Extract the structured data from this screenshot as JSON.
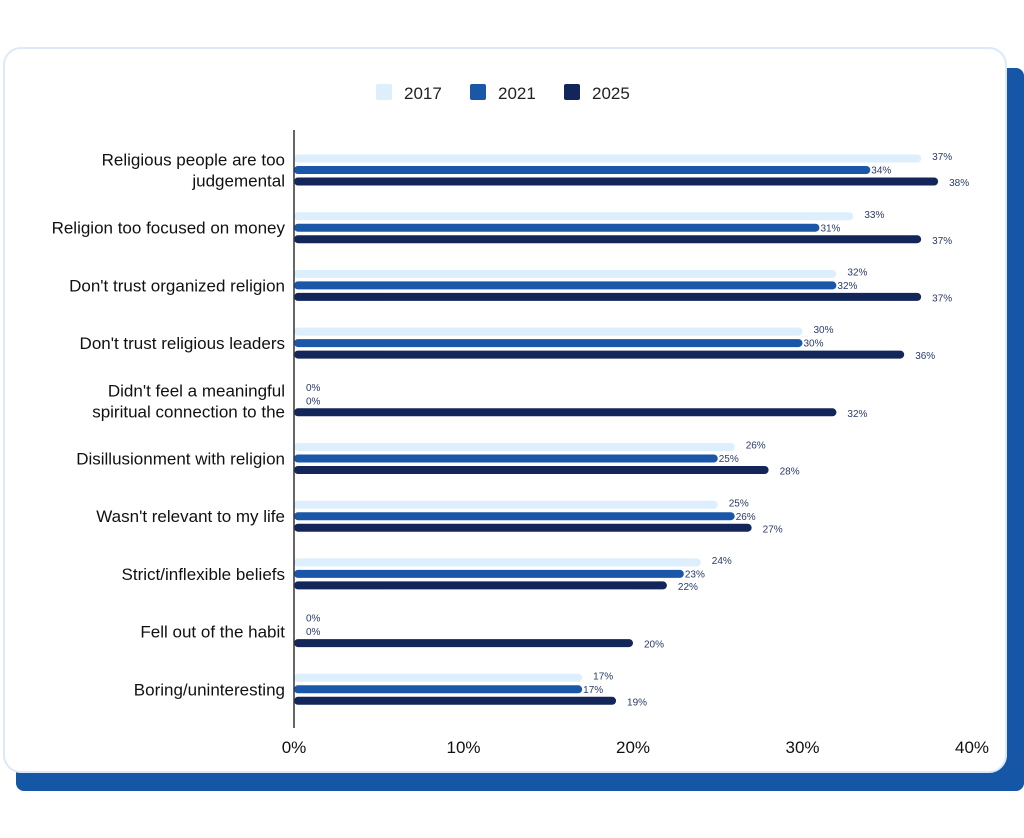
{
  "colors": {
    "card_shadow": "#1556a6",
    "card_border": "#dce9f8",
    "axis": "#333333"
  },
  "chart_data": {
    "type": "bar",
    "orientation": "horizontal",
    "categories": [
      [
        "Religious people are too",
        "judgemental"
      ],
      [
        "Religion too focused on money"
      ],
      [
        "Don't trust organized religion"
      ],
      [
        "Don't trust religious leaders"
      ],
      [
        "Didn't feel a meaningful",
        "spiritual connection to the"
      ],
      [
        "Disillusionment with religion"
      ],
      [
        "Wasn't relevant to my life"
      ],
      [
        "Strict/inflexible beliefs"
      ],
      [
        "Fell out of the habit"
      ],
      [
        "Boring/uninteresting"
      ]
    ],
    "series": [
      {
        "name": "2017",
        "color": "#ddeefc",
        "values": [
          37,
          33,
          32,
          30,
          0,
          26,
          25,
          24,
          0,
          17
        ]
      },
      {
        "name": "2021",
        "color": "#1a57a8",
        "values": [
          34,
          31,
          32,
          30,
          0,
          25,
          26,
          23,
          0,
          17
        ]
      },
      {
        "name": "2025",
        "color": "#13265a",
        "values": [
          38,
          37,
          37,
          36,
          32,
          28,
          27,
          22,
          20,
          19
        ]
      }
    ],
    "value_suffix": "%",
    "xlim": [
      0,
      40
    ],
    "xticks": [
      0,
      10,
      20,
      30,
      40
    ],
    "xtick_labels": [
      "0%",
      "10%",
      "20%",
      "30%",
      "40%"
    ],
    "legend_position": "top-center",
    "grid": false
  }
}
